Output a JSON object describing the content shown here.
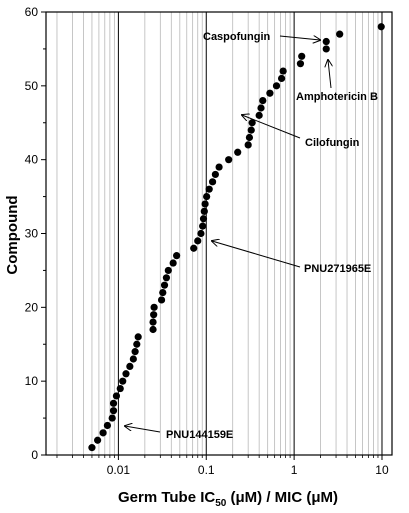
{
  "chart_data": {
    "type": "scatter",
    "title": "",
    "xlabel": "Germ Tube IC50 (μM) / MIC (μM)",
    "xlabel_parts": {
      "main": "Germ Tube IC",
      "sub": "50",
      "rest": " (μM) / MIC (μM)"
    },
    "ylabel": "Compound",
    "xscale": "log",
    "xlim": [
      0.0015,
      13
    ],
    "ylim": [
      0,
      60
    ],
    "grid": "vertical",
    "x_tick_labels": [
      "0.01",
      "0.1",
      "1",
      "10"
    ],
    "x_ticks": [
      0.01,
      0.1,
      1,
      10
    ],
    "y_ticks": [
      0,
      10,
      20,
      30,
      40,
      50,
      60
    ],
    "y_tick_labels": [
      "0",
      "10",
      "20",
      "30",
      "40",
      "50",
      "60"
    ],
    "points": [
      [
        0.005,
        1
      ],
      [
        0.0058,
        2
      ],
      [
        0.0067,
        3
      ],
      [
        0.0075,
        4
      ],
      [
        0.0085,
        5
      ],
      [
        0.0088,
        6
      ],
      [
        0.0088,
        7
      ],
      [
        0.0095,
        8
      ],
      [
        0.0105,
        9
      ],
      [
        0.0112,
        10
      ],
      [
        0.0122,
        11
      ],
      [
        0.0135,
        12
      ],
      [
        0.0148,
        13
      ],
      [
        0.0155,
        14
      ],
      [
        0.0162,
        15
      ],
      [
        0.0168,
        16
      ],
      [
        0.0248,
        17
      ],
      [
        0.0248,
        18
      ],
      [
        0.0252,
        19
      ],
      [
        0.0255,
        20
      ],
      [
        0.031,
        21
      ],
      [
        0.032,
        22
      ],
      [
        0.0335,
        23
      ],
      [
        0.0352,
        24
      ],
      [
        0.037,
        25
      ],
      [
        0.042,
        26
      ],
      [
        0.046,
        27
      ],
      [
        0.072,
        28
      ],
      [
        0.08,
        29
      ],
      [
        0.087,
        30
      ],
      [
        0.091,
        31
      ],
      [
        0.093,
        32
      ],
      [
        0.095,
        33
      ],
      [
        0.097,
        34
      ],
      [
        0.101,
        35
      ],
      [
        0.108,
        36
      ],
      [
        0.118,
        37
      ],
      [
        0.127,
        38
      ],
      [
        0.14,
        39
      ],
      [
        0.18,
        40
      ],
      [
        0.228,
        41
      ],
      [
        0.3,
        42
      ],
      [
        0.31,
        43
      ],
      [
        0.325,
        44
      ],
      [
        0.333,
        45
      ],
      [
        0.4,
        46
      ],
      [
        0.42,
        47
      ],
      [
        0.44,
        48
      ],
      [
        0.53,
        49
      ],
      [
        0.63,
        50
      ],
      [
        0.72,
        51
      ],
      [
        0.75,
        52
      ],
      [
        1.18,
        53
      ],
      [
        1.22,
        54
      ],
      [
        2.32,
        55
      ],
      [
        2.32,
        56
      ],
      [
        3.3,
        57
      ],
      [
        9.8,
        58
      ]
    ],
    "annotations": [
      {
        "label": "Caspofungin",
        "x": 2.32,
        "y": 56
      },
      {
        "label": "Amphotericin B",
        "x": 2.32,
        "y": 55
      },
      {
        "label": "Cilofungin",
        "x": 0.42,
        "y": 47
      },
      {
        "label": "PNU271965E",
        "x": 0.087,
        "y": 30
      },
      {
        "label": "PNU144159E",
        "x": 0.0098,
        "y": 3
      }
    ]
  }
}
